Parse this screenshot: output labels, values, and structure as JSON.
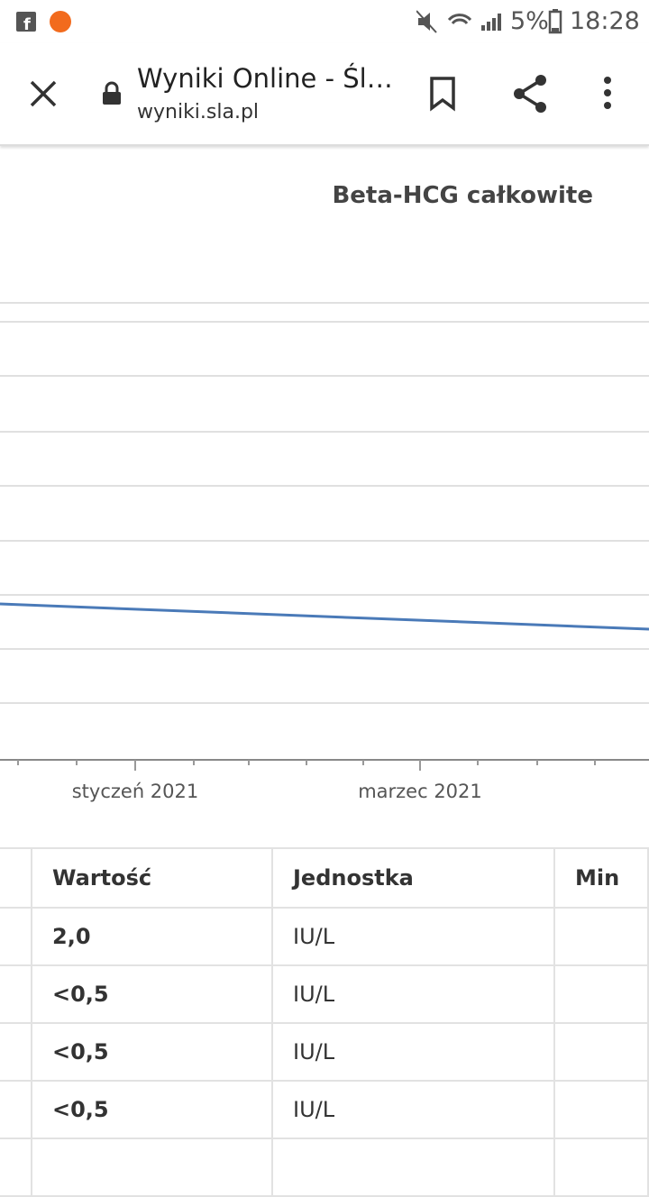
{
  "status_bar": {
    "battery": "5%",
    "time": "18:28"
  },
  "browser": {
    "title": "Wyniki Online - Śl…",
    "url": "wyniki.sla.pl"
  },
  "chart": {
    "title": "Beta-HCG całkowite",
    "x_labels": [
      "styczeń 2021",
      "marzec 2021"
    ]
  },
  "table": {
    "header": [
      "Wartość",
      "Jednostka",
      "Min"
    ],
    "rows": [
      [
        "2,0",
        "IU/L"
      ],
      [
        "<0,5",
        "IU/L"
      ],
      [
        "<0,5",
        "IU/L"
      ],
      [
        "<0,5",
        "IU/L"
      ]
    ]
  }
}
